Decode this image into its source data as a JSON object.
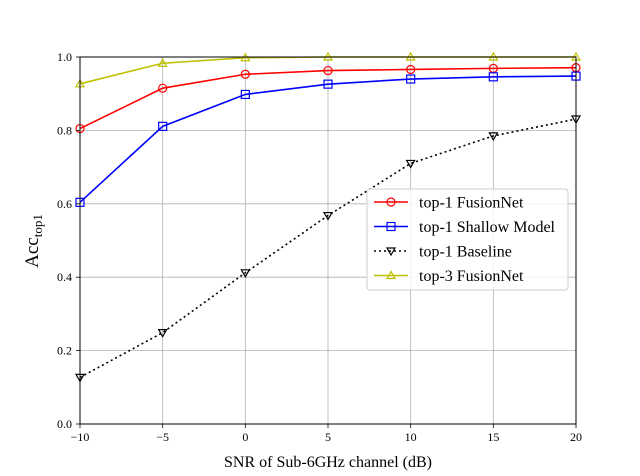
{
  "chart_data": {
    "type": "line",
    "title": "",
    "xlabel": "SNR of Sub-6GHz channel (dB)",
    "ylabel": {
      "main": "Acc",
      "subscript": "top1"
    },
    "x": [
      -10,
      -5,
      0,
      5,
      10,
      15,
      20
    ],
    "xlim": [
      -10,
      20
    ],
    "ylim": [
      0,
      1
    ],
    "xticks": [
      "−10",
      "−5",
      "0",
      "5",
      "10",
      "15",
      "20"
    ],
    "yticks": [
      "0.0",
      "0.2",
      "0.4",
      "0.6",
      "0.8",
      "1.0"
    ],
    "grid": true,
    "legend_position": "center-right",
    "series": [
      {
        "name": "top-1 FusionNet",
        "values": [
          0.805,
          0.915,
          0.953,
          0.963,
          0.966,
          0.969,
          0.971
        ],
        "color": "#ff0000",
        "marker": "circle",
        "dash": "solid"
      },
      {
        "name": "top-1 Shallow Model",
        "values": [
          0.604,
          0.811,
          0.898,
          0.926,
          0.94,
          0.946,
          0.948
        ],
        "color": "#0000ff",
        "marker": "square",
        "dash": "solid"
      },
      {
        "name": "top-1 Baseline",
        "values": [
          0.127,
          0.249,
          0.412,
          0.568,
          0.71,
          0.785,
          0.831
        ],
        "color": "#000000",
        "marker": "triangle-down",
        "dash": "dotted"
      },
      {
        "name": "top-3 FusionNet",
        "values": [
          0.927,
          0.983,
          0.998,
          1.0,
          1.0,
          1.0,
          1.0
        ],
        "color": "#bfbf00",
        "marker": "triangle-up",
        "dash": "solid"
      }
    ]
  }
}
